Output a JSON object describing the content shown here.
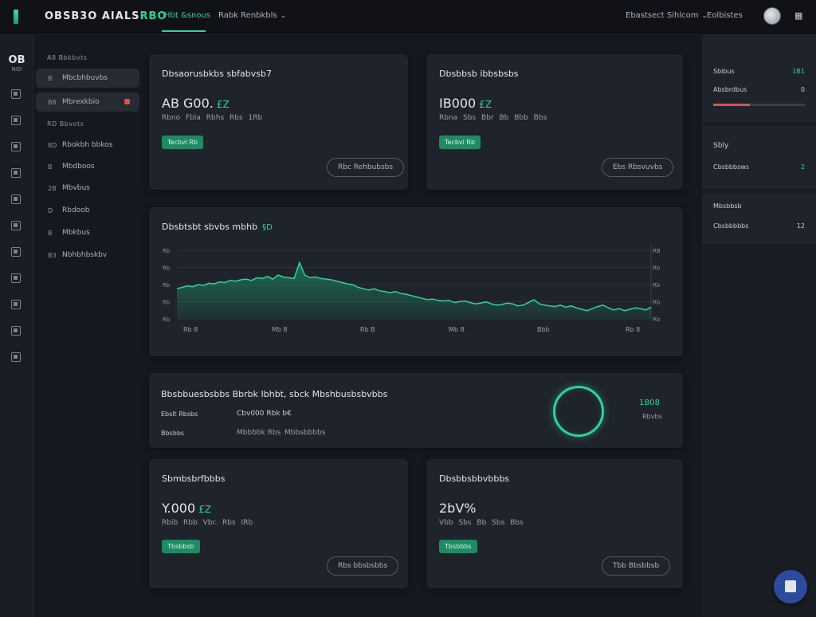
{
  "header": {
    "brand": "OBSB3O AIALS",
    "brand_accent": "RBO",
    "tabs": [
      {
        "label": "Hbt &snous"
      },
      {
        "label": "Rabk Renbkbls"
      }
    ],
    "account_menu": "Ebastsect Sihlcom",
    "settings_label": "Eolbistes",
    "icon": "grid-icon"
  },
  "rail": {
    "head_big": "OB",
    "head_small": "NGI"
  },
  "sidebar": {
    "section1": "A8 Bbkbvts",
    "section2": "RD Bbvots",
    "items": [
      {
        "icon": "B",
        "label": "Mbcbhbuvbs",
        "filled": true
      },
      {
        "icon": "B8",
        "label": "Mbrexkbio",
        "filled": true,
        "alert": true
      },
      {
        "icon": "8D",
        "label": "Rbokbh bbkos"
      },
      {
        "icon": "B",
        "label": "Mbdboos"
      },
      {
        "icon": "2B",
        "label": "Mbvbus"
      },
      {
        "icon": "D",
        "label": "Rbdoob"
      },
      {
        "icon": "B",
        "label": "Mbkbus"
      },
      {
        "icon": "B3",
        "label": "Nbhbhbskbv"
      }
    ]
  },
  "cards": {
    "top_left": {
      "title": "Dbsaorusbkbs sbfabvsb7",
      "value": "AB G00.",
      "value_accent": "£Z",
      "sub": "Rbno Fbla Rbhs Rbs 1Rb",
      "badge": "Tecbvl Rb",
      "button": "Rbc Rehbubsbs"
    },
    "top_right": {
      "title": "Dbsbbsb ibbsbsbs",
      "value": "IB000",
      "value_accent": "£Z",
      "sub": "Rbna Sbs Bbr Bb Bbb Bbs",
      "badge": "Tecbvl Rb",
      "button": "Ebs Rbsvuvbs"
    },
    "chart": {
      "title": "Dbsbtsbt sbvbs mbhb",
      "title_accent": "§D"
    },
    "summary": {
      "title": "Bbsbbuesbsbbs   Bbrbk Ibhbt, sbck Mbshbusbsbvbbs",
      "row1_label": "Ebslt Rbsbs",
      "row1_value": "Cbv000 Rbk b€",
      "row2_label": "Bbsbbs",
      "row2_value": "Mbbbbk Rbs",
      "row2_value2": "Mbbsbbbbs",
      "ring_value": "1B08",
      "ring_sub": "Rbvbs"
    },
    "bottom_left": {
      "title": "Sbmbsbrfbbbs",
      "value": "Y.000",
      "value_accent": "£Z",
      "sub": "Rbib Rbb Vbr. Rbs IRb",
      "badge": "Tbsbbsb",
      "button": "Rbs bbsbsbbs"
    },
    "bottom_right": {
      "title": "Dbsbbsbbvbbbs",
      "value": "2bV%",
      "sub": "Vbb Sbs Bb Sbs Bbs",
      "badge": "Tbsbbbs",
      "button": "Tbb Bbsbbsb"
    }
  },
  "right_panel": {
    "block1_row1_label": "Sbibus",
    "block1_row1_value": "1B1",
    "block1_row2_label": "Absbrdbus",
    "block1_row2_value": "0",
    "block1_progress": 0.4,
    "block2_title": "Sbly",
    "block2_label": "Cbsbbbsws",
    "block2_value": "2",
    "block3_title": "Mbsbbsb",
    "block3_label": "Cbsbbbbbs",
    "block3_value": "12"
  },
  "chart_data": {
    "type": "area",
    "x_tick_labels": [
      "Rb 8",
      "Mb 8",
      "Rb B",
      "Mb 8",
      "Bbb",
      "Rb 8"
    ],
    "y_left_labels": [
      "Rb",
      "Rb",
      "Rb",
      "Rb",
      "Rb"
    ],
    "y_right_labels": [
      "RB",
      "Rb",
      "Rb",
      "Rb",
      "Rb"
    ],
    "ylim": [
      0,
      100
    ],
    "values": [
      44,
      46,
      48,
      47,
      50,
      49,
      52,
      51,
      54,
      53,
      56,
      55,
      57,
      58,
      56,
      60,
      59,
      62,
      58,
      64,
      61,
      60,
      59,
      82,
      64,
      60,
      61,
      59,
      58,
      57,
      55,
      53,
      51,
      50,
      46,
      44,
      42,
      44,
      41,
      40,
      38,
      40,
      37,
      36,
      34,
      32,
      30,
      28,
      29,
      27,
      26,
      27,
      24,
      25,
      26,
      24,
      22,
      23,
      25,
      22,
      20,
      21,
      23,
      22,
      19,
      20,
      24,
      28,
      22,
      20,
      19,
      18,
      20,
      17,
      19,
      16,
      14,
      12,
      15,
      18,
      20,
      16,
      13,
      15,
      12,
      14,
      16,
      15,
      13,
      17
    ],
    "grid": true,
    "colors": {
      "line": "#2ed39a",
      "fill": "#1e7a5a"
    }
  },
  "colors": {
    "accent": "#2ed39a",
    "alert": "#e0504a",
    "background": "#16181f",
    "card": "#1f232b"
  }
}
